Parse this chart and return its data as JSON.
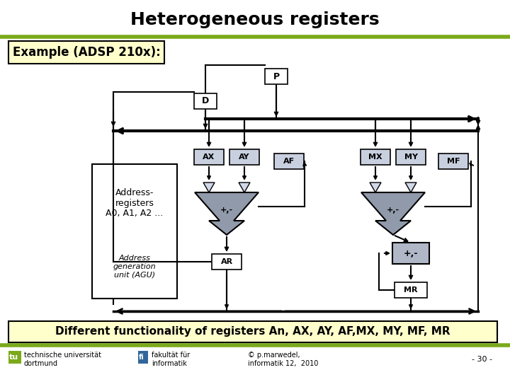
{
  "title": "Heterogeneous registers",
  "title_fontsize": 18,
  "bg_color": "#ffffff",
  "green_color": "#7aaa1a",
  "example_text": "Example (ADSP 210x):",
  "example_bg": "#ffffcc",
  "bottom_text": "Different functionality of registers An, AX, AY, AF,MX, MY, MF, MR",
  "bottom_bg": "#ffffcc",
  "reg_bg": "#c8d0e0",
  "alu_bg": "#a8b0c0",
  "mac_bg": "#b0b8c8",
  "footer_left1": "technische universität",
  "footer_left2": "dortmund",
  "footer_mid1": "fakultät für",
  "footer_mid2": "informatik",
  "footer_right1": "© p.marwedel,",
  "footer_right2": "informatik 12,  2010",
  "footer_page": "- 30 -"
}
